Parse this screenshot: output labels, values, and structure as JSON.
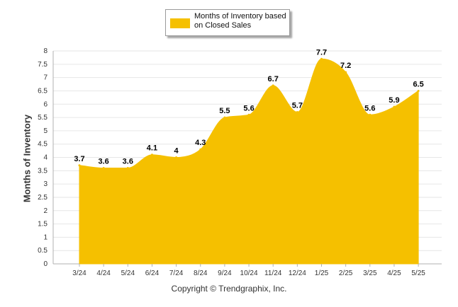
{
  "chart_data": {
    "type": "area",
    "categories": [
      "3/24",
      "4/24",
      "5/24",
      "6/24",
      "7/24",
      "8/24",
      "9/24",
      "10/24",
      "11/24",
      "12/24",
      "1/25",
      "2/25",
      "3/25",
      "4/25",
      "5/25"
    ],
    "series": [
      {
        "name": "Months of Inventory based on Closed Sales",
        "values": [
          3.7,
          3.6,
          3.6,
          4.1,
          4,
          4.3,
          5.5,
          5.6,
          6.7,
          5.7,
          7.7,
          7.2,
          5.6,
          5.9,
          6.5
        ]
      }
    ],
    "data_labels": [
      "3.7",
      "3.6",
      "3.6",
      "4.1",
      "4",
      "4.3",
      "5.5",
      "5.6",
      "6.7",
      "5.7",
      "7.7",
      "7.2",
      "5.6",
      "5.9",
      "6.5"
    ],
    "ylabel": "Months of Inventory",
    "ylim": [
      0,
      8
    ],
    "yticks": [
      "0",
      "0.5",
      "1",
      "1.5",
      "2",
      "2.5",
      "3",
      "3.5",
      "4",
      "4.5",
      "5",
      "5.5",
      "6",
      "6.5",
      "7",
      "7.5",
      "8"
    ],
    "grid": true,
    "legend_position": "top-center",
    "color": "#F5C000"
  },
  "footer": {
    "copyright": "Copyright © Trendgraphix, Inc."
  }
}
